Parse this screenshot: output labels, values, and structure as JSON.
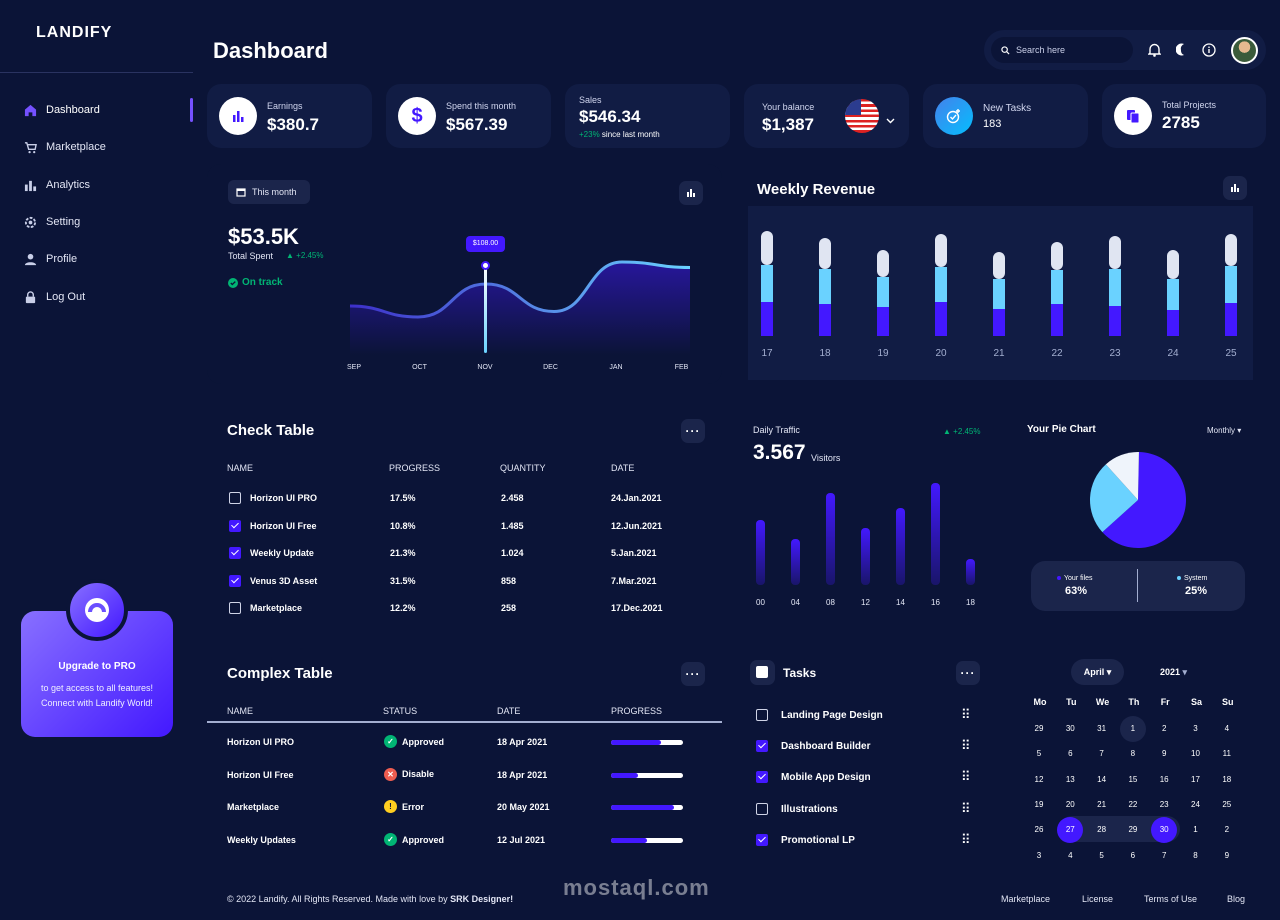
{
  "brand": "LANDIFY",
  "nav": [
    {
      "label": "Dashboard",
      "icon": "home-icon"
    },
    {
      "label": "Marketplace",
      "icon": "cart-icon"
    },
    {
      "label": "Analytics",
      "icon": "chart-icon"
    },
    {
      "label": "Setting",
      "icon": "gear-icon"
    },
    {
      "label": "Profile",
      "icon": "user-icon"
    },
    {
      "label": "Log Out",
      "icon": "lock-icon"
    }
  ],
  "promo": {
    "title": "Upgrade to PRO",
    "line1": "to get access to all features!",
    "line2": "Connect with Landify World!"
  },
  "page_title": "Dashboard",
  "search": {
    "placeholder": "Search here"
  },
  "stats": {
    "earnings": {
      "label": "Earnings",
      "value": "$380.7"
    },
    "spend": {
      "label": "Spend this month",
      "value": "$567.39"
    },
    "sales": {
      "label": "Sales",
      "value": "$546.34",
      "change": "+23%",
      "change_text": "since last month"
    },
    "balance": {
      "label": "Your balance",
      "value": "$1,387"
    },
    "tasks": {
      "label": "New Tasks",
      "value": "183"
    },
    "projects": {
      "label": "Total Projects",
      "value": "2785"
    }
  },
  "spent": {
    "period": "This month",
    "value": "$53.5K",
    "label": "Total Spent",
    "change": "+2.45%",
    "status": "On track",
    "tooltip": "$108.00"
  },
  "line_chart": {
    "type": "line",
    "categories": [
      "SEP",
      "OCT",
      "NOV",
      "DEC",
      "JAN",
      "FEB"
    ],
    "series": [
      {
        "values": [
          40,
          30,
          60,
          35,
          80,
          75
        ]
      }
    ]
  },
  "weekly": {
    "title": "Weekly Revenue"
  },
  "weekly_chart": {
    "type": "bar",
    "categories": [
      "17",
      "18",
      "19",
      "20",
      "21",
      "22",
      "23",
      "24",
      "25"
    ],
    "series": [
      {
        "values": [
          34,
          32,
          29,
          34,
          27,
          32,
          30,
          26,
          33
        ]
      },
      {
        "values": [
          37,
          35,
          30,
          35,
          30,
          34,
          37,
          31,
          37
        ]
      },
      {
        "values": [
          34,
          31,
          27,
          33,
          27,
          28,
          33,
          29,
          32
        ]
      }
    ]
  },
  "check_table": {
    "title": "Check Table",
    "headers": [
      "NAME",
      "PROGRESS",
      "QUANTITY",
      "DATE"
    ],
    "rows": [
      {
        "name": "Horizon UI PRO",
        "progress": "17.5%",
        "qty": "2.458",
        "date": "24.Jan.2021",
        "checked": false
      },
      {
        "name": "Horizon UI Free",
        "progress": "10.8%",
        "qty": "1.485",
        "date": "12.Jun.2021",
        "checked": true
      },
      {
        "name": "Weekly Update",
        "progress": "21.3%",
        "qty": "1.024",
        "date": "5.Jan.2021",
        "checked": true
      },
      {
        "name": "Venus 3D Asset",
        "progress": "31.5%",
        "qty": "858",
        "date": "7.Mar.2021",
        "checked": true
      },
      {
        "name": "Marketplace",
        "progress": "12.2%",
        "qty": "258",
        "date": "17.Dec.2021",
        "checked": false
      }
    ]
  },
  "traffic": {
    "label": "Daily Traffic",
    "value": "3.567",
    "unit": "Visitors",
    "change": "+2.45%"
  },
  "traffic_chart": {
    "type": "bar",
    "categories": [
      "00",
      "04",
      "08",
      "12",
      "14",
      "16",
      "18"
    ],
    "values": [
      65,
      46,
      92,
      57,
      77,
      102,
      26
    ]
  },
  "pie": {
    "title": "Your Pie Chart",
    "period": "Monthly",
    "files_label": "Your files",
    "files_value": "63%",
    "system_label": "System",
    "system_value": "25%"
  },
  "pie_chart": {
    "type": "pie",
    "slices": [
      {
        "name": "Your files",
        "value": 63
      },
      {
        "name": "System",
        "value": 25
      },
      {
        "name": "Other",
        "value": 12
      }
    ]
  },
  "complex_table": {
    "title": "Complex Table",
    "headers": [
      "NAME",
      "STATUS",
      "DATE",
      "PROGRESS"
    ],
    "rows": [
      {
        "name": "Horizon UI PRO",
        "status": "Approved",
        "date": "18 Apr 2021",
        "progress": 0.7
      },
      {
        "name": "Horizon UI Free",
        "status": "Disable",
        "date": "18 Apr 2021",
        "progress": 0.38
      },
      {
        "name": "Marketplace",
        "status": "Error",
        "date": "20 May 2021",
        "progress": 0.88
      },
      {
        "name": "Weekly Updates",
        "status": "Approved",
        "date": "12 Jul 2021",
        "progress": 0.5
      }
    ]
  },
  "tasks": {
    "title": "Tasks",
    "items": [
      {
        "label": "Landing Page Design",
        "checked": false
      },
      {
        "label": "Dashboard Builder",
        "checked": true
      },
      {
        "label": "Mobile App Design",
        "checked": true
      },
      {
        "label": "Illustrations",
        "checked": false
      },
      {
        "label": "Promotional LP",
        "checked": true
      }
    ]
  },
  "calendar": {
    "month": "April",
    "year": "2021",
    "days": [
      "Mo",
      "Tu",
      "We",
      "Th",
      "Fr",
      "Sa",
      "Su"
    ],
    "weeks": [
      [
        "29",
        "30",
        "31",
        "1",
        "2",
        "3",
        "4"
      ],
      [
        "5",
        "6",
        "7",
        "8",
        "9",
        "10",
        "11"
      ],
      [
        "12",
        "13",
        "14",
        "15",
        "16",
        "17",
        "18"
      ],
      [
        "19",
        "20",
        "21",
        "22",
        "23",
        "24",
        "25"
      ],
      [
        "26",
        "27",
        "28",
        "29",
        "30",
        "1",
        "2"
      ],
      [
        "3",
        "4",
        "5",
        "6",
        "7",
        "8",
        "9"
      ]
    ]
  },
  "footer": {
    "copy": "© 2022 Landify. All Rights Reserved. Made with love by ",
    "author": "SRK Designer!",
    "links": [
      "Marketplace",
      "License",
      "Terms of Use",
      "Blog"
    ]
  },
  "watermark": "mostaql.com"
}
